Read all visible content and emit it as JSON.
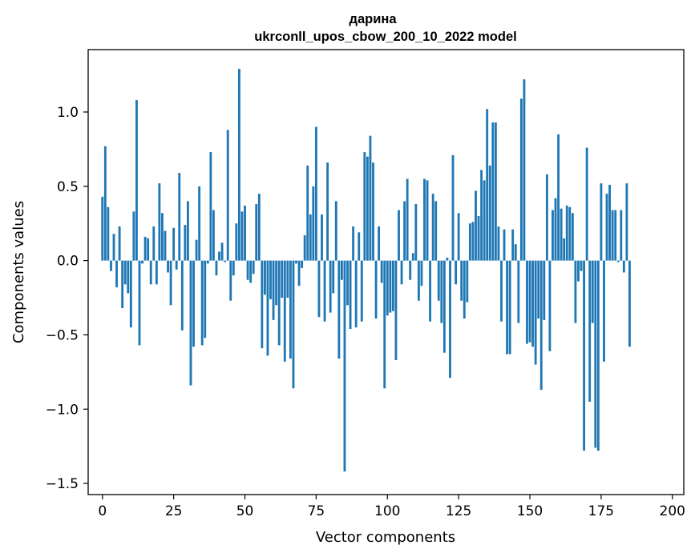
{
  "chart_data": {
    "type": "bar",
    "title": "дарина",
    "subtitle": "ukrconll_upos_cbow_200_10_2022 model",
    "xlabel": "Vector components",
    "ylabel": "Components values",
    "xlim": [
      -5,
      204
    ],
    "ylim": [
      -1.575,
      1.42
    ],
    "xticks": [
      0,
      25,
      50,
      75,
      100,
      125,
      150,
      175,
      200
    ],
    "yticks": [
      -1.5,
      -1.0,
      -0.5,
      0.0,
      0.5,
      1.0
    ],
    "ytick_labels": [
      "−1.5",
      "−1.0",
      "−0.5",
      "0.0",
      "0.5",
      "1.0"
    ],
    "bar_color": "#1f77b4",
    "values": [
      0.43,
      0.77,
      0.36,
      -0.07,
      0.18,
      -0.18,
      0.23,
      -0.32,
      -0.16,
      -0.22,
      -0.45,
      0.33,
      1.08,
      -0.57,
      -0.02,
      0.16,
      0.15,
      -0.16,
      0.23,
      -0.16,
      0.52,
      0.32,
      0.2,
      -0.08,
      -0.3,
      0.22,
      -0.06,
      0.59,
      -0.47,
      0.24,
      0.4,
      -0.84,
      -0.58,
      0.14,
      0.5,
      -0.57,
      -0.52,
      -0.02,
      0.73,
      0.34,
      -0.1,
      0.06,
      0.12,
      -0.01,
      0.88,
      -0.27,
      -0.1,
      0.25,
      1.29,
      0.33,
      0.37,
      -0.13,
      -0.15,
      -0.09,
      0.38,
      0.45,
      -0.59,
      -0.23,
      -0.64,
      -0.26,
      -0.4,
      -0.3,
      -0.57,
      -0.25,
      -0.68,
      -0.25,
      -0.66,
      -0.86,
      -0.02,
      -0.17,
      -0.05,
      0.17,
      0.64,
      0.31,
      0.5,
      0.9,
      -0.38,
      0.31,
      -0.41,
      0.66,
      -0.35,
      -0.22,
      0.4,
      -0.66,
      -0.13,
      -1.42,
      -0.3,
      -0.46,
      0.23,
      -0.45,
      0.19,
      -0.41,
      0.73,
      0.7,
      0.84,
      0.66,
      -0.39,
      0.23,
      -0.15,
      -0.86,
      -0.37,
      -0.35,
      -0.34,
      -0.67,
      0.34,
      -0.16,
      0.4,
      0.55,
      -0.13,
      0.05,
      0.38,
      -0.27,
      -0.17,
      0.55,
      0.54,
      -0.41,
      0.45,
      0.4,
      -0.27,
      -0.42,
      -0.62,
      0.02,
      -0.79,
      0.71,
      -0.16,
      0.32,
      -0.27,
      -0.39,
      -0.28,
      0.25,
      0.26,
      0.47,
      0.3,
      0.61,
      0.54,
      1.02,
      0.64,
      0.93,
      0.93,
      0.23,
      -0.41,
      0.21,
      -0.63,
      -0.63,
      0.21,
      0.11,
      -0.42,
      1.09,
      1.22,
      -0.56,
      -0.55,
      -0.58,
      -0.7,
      -0.39,
      -0.87,
      -0.4,
      0.58,
      -0.61,
      0.34,
      0.42,
      0.85,
      0.35,
      0.15,
      0.37,
      0.36,
      0.32,
      -0.42,
      -0.14,
      -0.07,
      -1.28,
      0.76,
      -0.95,
      -0.42,
      -1.26,
      -1.28,
      0.52,
      -0.68,
      0.45,
      0.51,
      0.34,
      0.34,
      -0.01,
      0.34,
      -0.08,
      0.52,
      -0.58
    ]
  }
}
